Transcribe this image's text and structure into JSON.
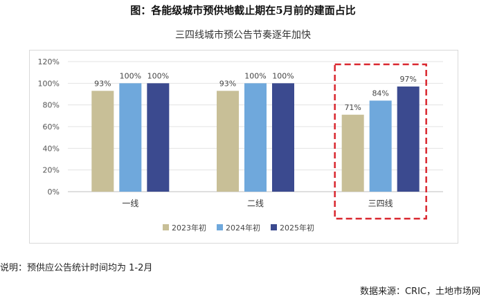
{
  "figure": {
    "title": "图：各能级城市预供地截止期在5月前的建面占比",
    "note": "说明：预供应公告统计时间均为 1-2月",
    "source": "数据来源：CRIC，土地市场网"
  },
  "chart_data": {
    "type": "bar",
    "title": "三四线城市预公告节奏逐年加快",
    "categories": [
      "一线",
      "二线",
      "三四线"
    ],
    "series": [
      {
        "name": "2023年初",
        "values": [
          93,
          93,
          71
        ],
        "color": "#c8bf97"
      },
      {
        "name": "2024年初",
        "values": [
          100,
          100,
          84
        ],
        "color": "#6fa8dc"
      },
      {
        "name": "2025年初",
        "values": [
          100,
          100,
          97
        ],
        "color": "#3b4a8f"
      }
    ],
    "data_labels": [
      [
        "93%",
        "100%",
        "100%"
      ],
      [
        "93%",
        "100%",
        "100%"
      ],
      [
        "71%",
        "84%",
        "97%"
      ]
    ],
    "yticks": [
      "0%",
      "20%",
      "40%",
      "60%",
      "80%",
      "100%",
      "120%"
    ],
    "ylim": [
      0,
      120
    ],
    "grid": true,
    "legend": "bottom",
    "highlight_category": "三四线",
    "highlight_color": "#d9262e"
  }
}
